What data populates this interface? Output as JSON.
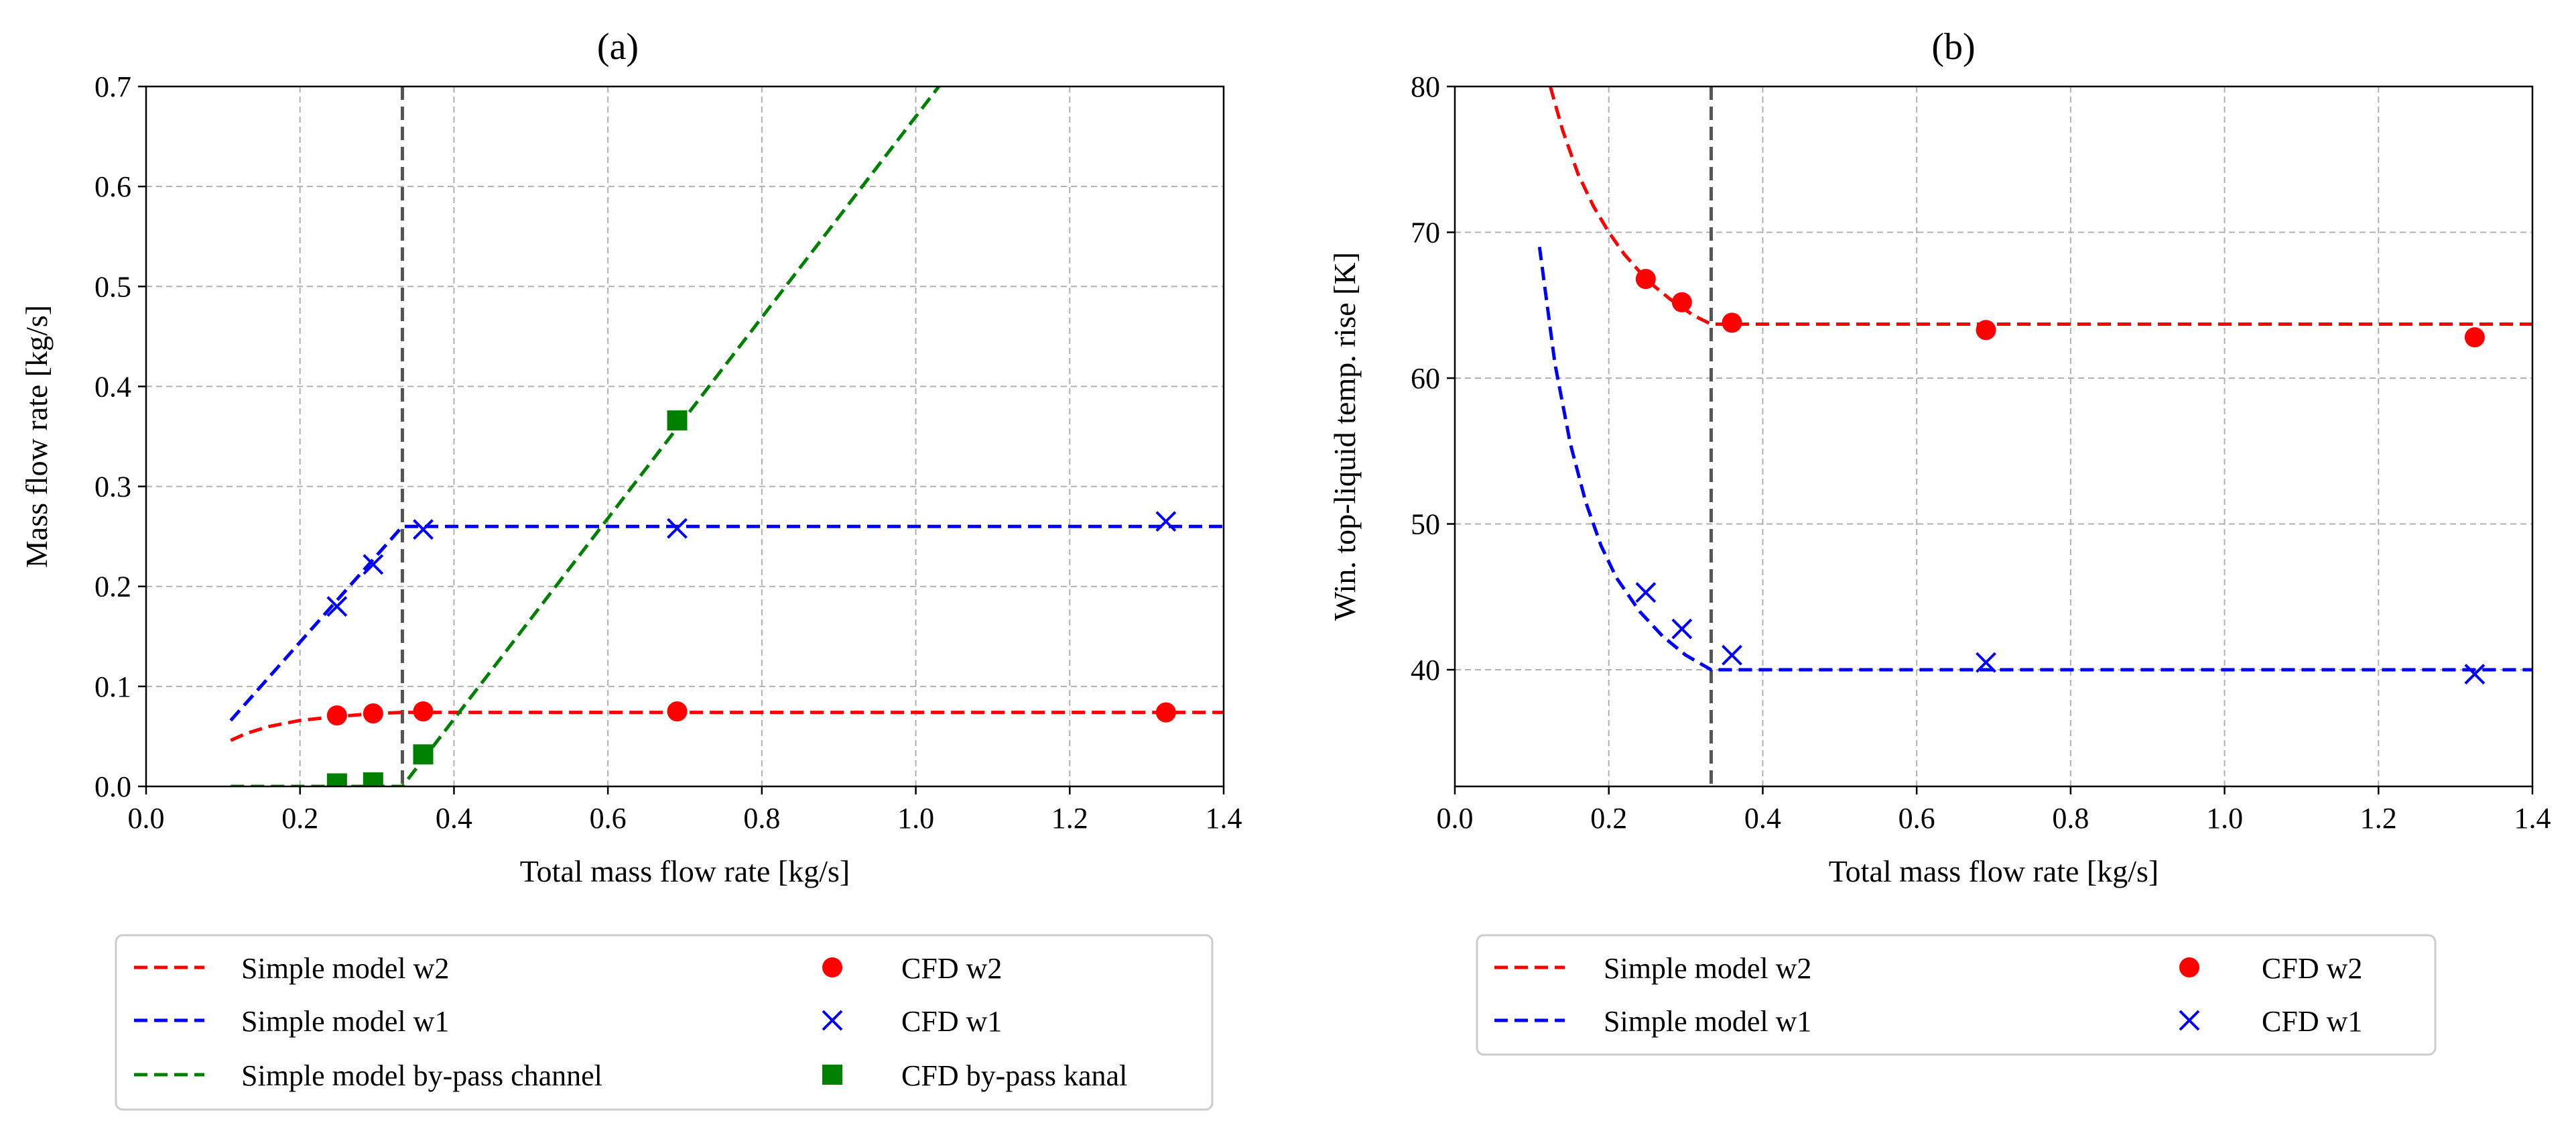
{
  "chart_data": [
    {
      "type": "line",
      "title": "(a)",
      "xlabel": "Total mass flow rate [kg/s]",
      "ylabel": "Mass flow rate [kg/s]",
      "xlim": [
        0.0,
        1.4
      ],
      "ylim": [
        0.0,
        0.7
      ],
      "xticks": [
        "0.0",
        "0.2",
        "0.4",
        "0.6",
        "0.8",
        "1.0",
        "1.2",
        "1.4"
      ],
      "yticks": [
        "0.0",
        "0.1",
        "0.2",
        "0.3",
        "0.4",
        "0.5",
        "0.6",
        "0.7"
      ],
      "grid": true,
      "vline_x": 0.333,
      "series": [
        {
          "name": "Simple model w2",
          "kind": "line",
          "color": "#ff0000",
          "x": [
            0.11,
            0.13,
            0.16,
            0.2,
            0.25,
            0.3,
            0.333,
            1.4
          ],
          "y": [
            0.046,
            0.053,
            0.06,
            0.066,
            0.07,
            0.073,
            0.074,
            0.074
          ]
        },
        {
          "name": "Simple model w1",
          "kind": "line",
          "color": "#0000ff",
          "x": [
            0.11,
            0.333,
            1.4
          ],
          "y": [
            0.066,
            0.26,
            0.26
          ]
        },
        {
          "name": "Simple model by-pass channel",
          "kind": "line",
          "color": "#008000",
          "x": [
            0.11,
            0.333,
            1.03
          ],
          "y": [
            0.0,
            0.0,
            0.7
          ]
        },
        {
          "name": "CFD w2",
          "kind": "circle",
          "color": "#ff0000",
          "x": [
            0.248,
            0.295,
            0.36,
            0.69,
            1.325
          ],
          "y": [
            0.071,
            0.073,
            0.075,
            0.075,
            0.074
          ]
        },
        {
          "name": "CFD w1",
          "kind": "x",
          "color": "#0000ff",
          "x": [
            0.248,
            0.295,
            0.36,
            0.69,
            1.325
          ],
          "y": [
            0.18,
            0.222,
            0.257,
            0.258,
            0.265
          ]
        },
        {
          "name": "CFD by-pass kanal",
          "kind": "square",
          "color": "#008000",
          "x": [
            0.248,
            0.295,
            0.36,
            0.69
          ],
          "y": [
            0.003,
            0.004,
            0.032,
            0.366
          ]
        }
      ]
    },
    {
      "type": "line",
      "title": "(b)",
      "xlabel": "Total mass flow rate [kg/s]",
      "ylabel": "Win. top-liquid temp. rise [K]",
      "xlim": [
        0.0,
        1.4
      ],
      "ylim": [
        32,
        80
      ],
      "xticks": [
        "0.0",
        "0.2",
        "0.4",
        "0.6",
        "0.8",
        "1.0",
        "1.2",
        "1.4"
      ],
      "yticks": [
        "40",
        "50",
        "60",
        "70",
        "80"
      ],
      "grid": true,
      "vline_x": 0.333,
      "series": [
        {
          "name": "Simple model w2",
          "kind": "line",
          "color": "#ff0000",
          "x": [
            0.124,
            0.14,
            0.16,
            0.18,
            0.2,
            0.22,
            0.25,
            0.28,
            0.31,
            0.333,
            1.4
          ],
          "y": [
            80.0,
            77.0,
            74.0,
            71.8,
            70.0,
            68.5,
            66.7,
            65.4,
            64.3,
            63.7,
            63.7
          ]
        },
        {
          "name": "Simple model w1",
          "kind": "line",
          "color": "#0000ff",
          "x": [
            0.11,
            0.13,
            0.15,
            0.17,
            0.19,
            0.21,
            0.24,
            0.27,
            0.3,
            0.333,
            1.4
          ],
          "y": [
            69.0,
            61.0,
            55.5,
            51.5,
            48.5,
            46.3,
            44.0,
            42.3,
            41.0,
            40.0,
            40.0
          ]
        },
        {
          "name": "CFD w2",
          "kind": "circle",
          "color": "#ff0000",
          "x": [
            0.248,
            0.295,
            0.36,
            0.69,
            1.325
          ],
          "y": [
            66.8,
            65.2,
            63.8,
            63.3,
            62.8
          ]
        },
        {
          "name": "CFD w1",
          "kind": "x",
          "color": "#0000ff",
          "x": [
            0.248,
            0.295,
            0.36,
            0.69,
            1.325
          ],
          "y": [
            45.3,
            42.8,
            41.0,
            40.5,
            39.7
          ]
        }
      ]
    }
  ]
}
